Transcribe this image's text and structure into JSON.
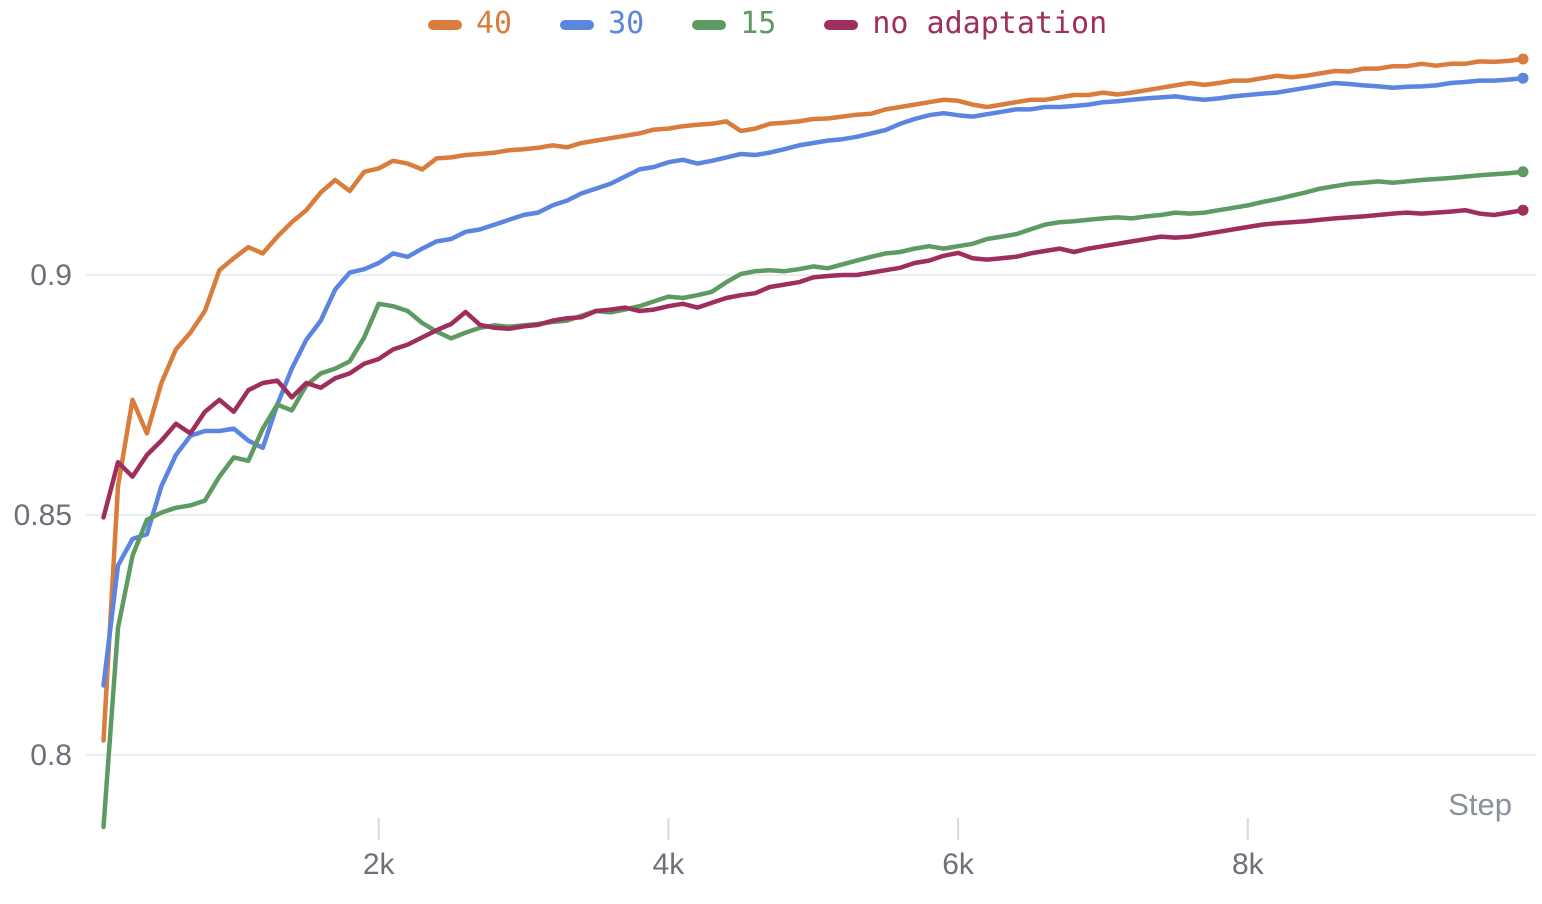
{
  "chart_data": {
    "type": "line",
    "title": "",
    "xlabel": "Step",
    "ylabel": "",
    "grid": "horizontal",
    "legend_position": "top",
    "x_axis": {
      "range": [
        0,
        9950
      ],
      "ticks": [
        {
          "value": 2000,
          "label": "2k"
        },
        {
          "value": 4000,
          "label": "4k"
        },
        {
          "value": 6000,
          "label": "6k"
        },
        {
          "value": 8000,
          "label": "8k"
        }
      ]
    },
    "y_axis": {
      "range": [
        0.769,
        0.957
      ],
      "ticks": [
        {
          "value": 0.9,
          "label": "0.9"
        },
        {
          "value": 0.85,
          "label": "0.85"
        },
        {
          "value": 0.8,
          "label": "0.8"
        }
      ]
    },
    "steps": [
      100,
      200,
      300,
      400,
      500,
      600,
      700,
      800,
      900,
      1000,
      1100,
      1200,
      1300,
      1400,
      1500,
      1600,
      1700,
      1800,
      1900,
      2000,
      2100,
      2200,
      2300,
      2400,
      2500,
      2600,
      2700,
      2800,
      2900,
      3000,
      3100,
      3200,
      3300,
      3400,
      3500,
      3600,
      3700,
      3800,
      3900,
      4000,
      4100,
      4200,
      4300,
      4400,
      4500,
      4600,
      4700,
      4800,
      4900,
      5000,
      5100,
      5200,
      5300,
      5400,
      5500,
      5600,
      5700,
      5800,
      5900,
      6000,
      6100,
      6200,
      6300,
      6400,
      6500,
      6600,
      6700,
      6800,
      6900,
      7000,
      7100,
      7200,
      7300,
      7400,
      7500,
      7600,
      7700,
      7800,
      7900,
      8000,
      8100,
      8200,
      8300,
      8400,
      8500,
      8600,
      8700,
      8800,
      8900,
      9000,
      9100,
      9200,
      9300,
      9400,
      9500,
      9600,
      9700,
      9800,
      9900
    ],
    "series": [
      {
        "name": "40",
        "color": "#d97c3c",
        "end_dot": true,
        "values": [
          0.803,
          0.856,
          0.874,
          0.867,
          0.8775,
          0.8845,
          0.888,
          0.8925,
          0.901,
          0.9035,
          0.9058,
          0.9045,
          0.908,
          0.911,
          0.9135,
          0.9172,
          0.9198,
          0.9175,
          0.9215,
          0.9222,
          0.9238,
          0.9232,
          0.922,
          0.9243,
          0.9245,
          0.925,
          0.9252,
          0.9255,
          0.926,
          0.9262,
          0.9265,
          0.927,
          0.9266,
          0.9275,
          0.928,
          0.9285,
          0.929,
          0.9295,
          0.9303,
          0.9305,
          0.931,
          0.9313,
          0.9315,
          0.932,
          0.93,
          0.9305,
          0.9315,
          0.9317,
          0.932,
          0.9325,
          0.9326,
          0.933,
          0.9334,
          0.9336,
          0.9345,
          0.935,
          0.9355,
          0.936,
          0.9365,
          0.9363,
          0.9355,
          0.935,
          0.9355,
          0.936,
          0.9365,
          0.9365,
          0.937,
          0.9375,
          0.9375,
          0.938,
          0.9376,
          0.938,
          0.9385,
          0.939,
          0.9395,
          0.94,
          0.9396,
          0.94,
          0.9405,
          0.9405,
          0.941,
          0.9415,
          0.9412,
          0.9415,
          0.942,
          0.9425,
          0.9424,
          0.943,
          0.943,
          0.9435,
          0.9435,
          0.944,
          0.9436,
          0.944,
          0.944,
          0.9445,
          0.9444,
          0.9446,
          0.945
        ]
      },
      {
        "name": "30",
        "color": "#5b85e0",
        "end_dot": true,
        "values": [
          0.8145,
          0.8395,
          0.845,
          0.846,
          0.856,
          0.8625,
          0.8665,
          0.8675,
          0.8675,
          0.868,
          0.8655,
          0.864,
          0.873,
          0.8805,
          0.8865,
          0.8905,
          0.897,
          0.9005,
          0.9012,
          0.9025,
          0.9045,
          0.9038,
          0.9055,
          0.907,
          0.9075,
          0.909,
          0.9095,
          0.9105,
          0.9115,
          0.9125,
          0.913,
          0.9145,
          0.9155,
          0.917,
          0.918,
          0.919,
          0.9205,
          0.922,
          0.9225,
          0.9235,
          0.924,
          0.9232,
          0.9238,
          0.9245,
          0.9252,
          0.925,
          0.9255,
          0.9262,
          0.927,
          0.9275,
          0.928,
          0.9283,
          0.9288,
          0.9295,
          0.9302,
          0.9315,
          0.9325,
          0.9333,
          0.9337,
          0.9333,
          0.933,
          0.9335,
          0.934,
          0.9345,
          0.9345,
          0.935,
          0.935,
          0.9352,
          0.9355,
          0.936,
          0.9362,
          0.9365,
          0.9368,
          0.937,
          0.9372,
          0.9368,
          0.9365,
          0.9368,
          0.9372,
          0.9375,
          0.9378,
          0.938,
          0.9385,
          0.939,
          0.9395,
          0.94,
          0.9398,
          0.9395,
          0.9393,
          0.939,
          0.9392,
          0.9393,
          0.9395,
          0.94,
          0.9402,
          0.9405,
          0.9405,
          0.9407,
          0.941
        ]
      },
      {
        "name": "15",
        "color": "#5d9b63",
        "end_dot": true,
        "values": [
          0.785,
          0.8265,
          0.8415,
          0.849,
          0.8505,
          0.8515,
          0.852,
          0.853,
          0.858,
          0.862,
          0.8613,
          0.868,
          0.873,
          0.8718,
          0.877,
          0.8795,
          0.8805,
          0.882,
          0.887,
          0.894,
          0.8935,
          0.8925,
          0.89,
          0.8882,
          0.8868,
          0.888,
          0.889,
          0.8895,
          0.8892,
          0.8895,
          0.8898,
          0.8902,
          0.8905,
          0.8915,
          0.8925,
          0.8922,
          0.8928,
          0.8935,
          0.8945,
          0.8955,
          0.8952,
          0.8958,
          0.8965,
          0.8985,
          0.9002,
          0.9008,
          0.901,
          0.9008,
          0.9012,
          0.9018,
          0.9014,
          0.9022,
          0.903,
          0.9038,
          0.9045,
          0.9048,
          0.9055,
          0.906,
          0.9055,
          0.906,
          0.9065,
          0.9075,
          0.908,
          0.9085,
          0.9095,
          0.9105,
          0.911,
          0.9112,
          0.9115,
          0.9118,
          0.912,
          0.9118,
          0.9122,
          0.9125,
          0.913,
          0.9128,
          0.913,
          0.9135,
          0.914,
          0.9145,
          0.9152,
          0.9158,
          0.9165,
          0.9172,
          0.918,
          0.9185,
          0.919,
          0.9192,
          0.9195,
          0.9192,
          0.9195,
          0.9198,
          0.92,
          0.9202,
          0.9205,
          0.9208,
          0.921,
          0.9212,
          0.9215
        ]
      },
      {
        "name": "no adaptation",
        "color": "#9e2f5d",
        "end_dot": true,
        "values": [
          0.8495,
          0.861,
          0.858,
          0.8625,
          0.8655,
          0.869,
          0.867,
          0.8715,
          0.874,
          0.8715,
          0.876,
          0.8775,
          0.878,
          0.8745,
          0.8775,
          0.8765,
          0.8785,
          0.8795,
          0.8815,
          0.8825,
          0.8845,
          0.8855,
          0.887,
          0.8885,
          0.8898,
          0.8923,
          0.8896,
          0.889,
          0.8888,
          0.8893,
          0.8896,
          0.8905,
          0.891,
          0.8912,
          0.8925,
          0.8928,
          0.8932,
          0.8925,
          0.8928,
          0.8935,
          0.894,
          0.8932,
          0.8942,
          0.8952,
          0.8958,
          0.8962,
          0.8975,
          0.898,
          0.8985,
          0.8995,
          0.8998,
          0.9,
          0.9,
          0.9005,
          0.901,
          0.9015,
          0.9025,
          0.903,
          0.904,
          0.9046,
          0.9035,
          0.9032,
          0.9035,
          0.9038,
          0.9045,
          0.905,
          0.9055,
          0.9048,
          0.9055,
          0.906,
          0.9065,
          0.907,
          0.9075,
          0.908,
          0.9078,
          0.908,
          0.9085,
          0.909,
          0.9095,
          0.91,
          0.9105,
          0.9108,
          0.911,
          0.9112,
          0.9115,
          0.9118,
          0.912,
          0.9122,
          0.9125,
          0.9128,
          0.913,
          0.9128,
          0.913,
          0.9132,
          0.9135,
          0.9128,
          0.9125,
          0.913,
          0.9135
        ]
      }
    ],
    "colors": {
      "gridline": "#ebedef",
      "tick_mark": "#d7d9dd",
      "tick_label": "#6b7079",
      "axis_title": "#8b919c",
      "background": "#ffffff"
    }
  }
}
